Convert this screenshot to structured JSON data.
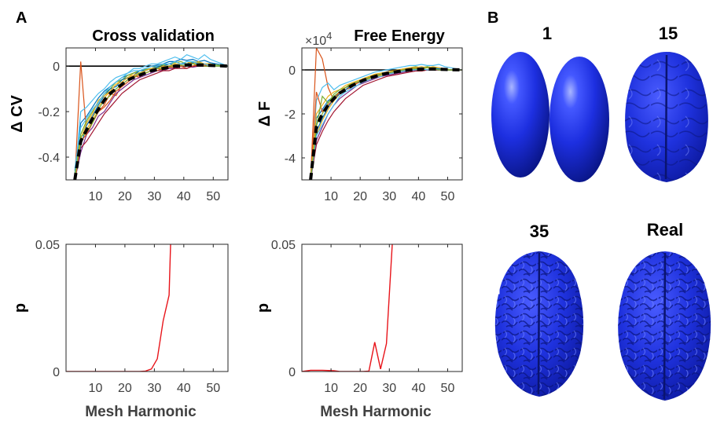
{
  "panel_labels": {
    "a": "A",
    "b": "B"
  },
  "colors": {
    "series": [
      "#0072BD",
      "#D95319",
      "#EDB120",
      "#7E2F8E",
      "#77AC30",
      "#4DBEEE",
      "#A2142F",
      "#0072BD",
      "#D95319",
      "#EDB120",
      "#4DBEEE",
      "#77AC30"
    ],
    "mean": "#000000",
    "p_line": "#e8141a",
    "brain": "#1d32e0",
    "zero_line": "#000000"
  },
  "brains": [
    {
      "label": "1",
      "kind": "ellipsoids"
    },
    {
      "label": "15",
      "kind": "smooth-brain"
    },
    {
      "label": "35",
      "kind": "detailed-brain"
    },
    {
      "label": "Real",
      "kind": "detailed-brain"
    }
  ],
  "chart_data": [
    {
      "type": "line",
      "title": "Cross validation",
      "xlabel": "",
      "ylabel": "Δ CV",
      "xlim": [
        0,
        55
      ],
      "ylim": [
        -0.5,
        0.08
      ],
      "xticks": [
        10,
        20,
        30,
        40,
        50
      ],
      "yticks": [
        0,
        -0.2,
        -0.4
      ],
      "ytick_labels": [
        "0",
        "-0.2",
        "-0.4"
      ],
      "zero_line": true,
      "x": [
        3,
        5,
        7,
        9,
        11,
        13,
        15,
        17,
        19,
        21,
        23,
        25,
        27,
        29,
        31,
        33,
        35,
        37,
        39,
        41,
        43,
        45,
        47,
        49,
        51,
        55
      ],
      "series": [
        {
          "values": [
            -0.46,
            -0.25,
            -0.22,
            -0.18,
            -0.14,
            -0.11,
            -0.09,
            -0.07,
            -0.05,
            -0.04,
            -0.03,
            -0.02,
            -0.01,
            0.0,
            0.005,
            0.01,
            0.02,
            0.02,
            0.03,
            0.025,
            0.03,
            0.02,
            0.025,
            0.015,
            0.01,
            0.0
          ]
        },
        {
          "values": [
            -0.5,
            0.02,
            -0.3,
            -0.25,
            -0.2,
            -0.17,
            -0.12,
            -0.13,
            -0.08,
            -0.06,
            -0.04,
            -0.05,
            -0.03,
            -0.02,
            -0.01,
            -0.02,
            -0.01,
            -0.005,
            0.0,
            -0.01,
            0.0,
            0.005,
            0.0,
            0.0,
            0.0,
            0.0
          ]
        },
        {
          "values": [
            -0.48,
            -0.34,
            -0.28,
            -0.23,
            -0.18,
            -0.14,
            -0.11,
            -0.08,
            -0.06,
            -0.05,
            -0.03,
            -0.03,
            -0.02,
            -0.01,
            -0.01,
            0.0,
            0.0,
            0.01,
            0.0,
            0.005,
            0.01,
            0.005,
            0.0,
            0.0,
            0.0,
            0.0
          ]
        },
        {
          "values": [
            -0.5,
            -0.38,
            -0.3,
            -0.27,
            -0.22,
            -0.2,
            -0.16,
            -0.12,
            -0.1,
            -0.08,
            -0.06,
            -0.05,
            -0.04,
            -0.03,
            -0.02,
            -0.02,
            -0.01,
            -0.01,
            0.0,
            0.0,
            -0.005,
            0.0,
            0.0,
            0.0,
            0.0,
            0.0
          ]
        },
        {
          "values": [
            -0.47,
            -0.3,
            -0.24,
            -0.2,
            -0.16,
            -0.12,
            -0.1,
            -0.07,
            -0.06,
            -0.04,
            -0.03,
            -0.02,
            -0.015,
            -0.01,
            0.0,
            0.005,
            0.01,
            0.015,
            0.02,
            0.01,
            0.02,
            0.015,
            0.01,
            0.01,
            0.005,
            0.0
          ]
        },
        {
          "values": [
            -0.49,
            -0.2,
            -0.18,
            -0.15,
            -0.12,
            -0.1,
            -0.07,
            -0.05,
            -0.04,
            -0.03,
            -0.01,
            -0.01,
            0.0,
            0.01,
            0.01,
            0.02,
            0.03,
            0.04,
            0.03,
            0.05,
            0.04,
            0.03,
            0.05,
            0.03,
            0.02,
            0.0
          ]
        },
        {
          "values": [
            -0.5,
            -0.36,
            -0.33,
            -0.29,
            -0.25,
            -0.21,
            -0.18,
            -0.15,
            -0.12,
            -0.1,
            -0.08,
            -0.06,
            -0.05,
            -0.04,
            -0.03,
            -0.02,
            -0.02,
            -0.01,
            -0.01,
            -0.01,
            0.0,
            0.0,
            0.0,
            0.0,
            0.0,
            0.0
          ]
        },
        {
          "values": [
            -0.48,
            -0.35,
            -0.26,
            -0.22,
            -0.17,
            -0.13,
            -0.1,
            -0.09,
            -0.06,
            -0.05,
            -0.04,
            -0.02,
            -0.02,
            -0.01,
            -0.005,
            0.0,
            0.01,
            0.005,
            0.01,
            0.01,
            0.015,
            0.01,
            0.01,
            0.005,
            0.0,
            0.0
          ]
        },
        {
          "values": [
            -0.5,
            -0.33,
            -0.3,
            -0.24,
            -0.2,
            -0.18,
            -0.15,
            -0.11,
            -0.09,
            -0.07,
            -0.05,
            -0.04,
            -0.03,
            -0.02,
            -0.02,
            -0.01,
            -0.005,
            0.0,
            0.0,
            0.005,
            0.0,
            0.01,
            0.005,
            0.0,
            0.0,
            0.0
          ]
        },
        {
          "values": [
            -0.5,
            -0.32,
            -0.25,
            -0.21,
            -0.15,
            -0.13,
            -0.11,
            -0.08,
            -0.07,
            -0.05,
            -0.04,
            -0.03,
            -0.02,
            -0.01,
            -0.01,
            0.0,
            0.0,
            0.01,
            0.01,
            0.02,
            0.01,
            0.02,
            0.01,
            0.01,
            0.0,
            0.0
          ]
        },
        {
          "values": [
            -0.45,
            -0.27,
            -0.23,
            -0.19,
            -0.16,
            -0.12,
            -0.09,
            -0.07,
            -0.05,
            -0.03,
            -0.02,
            -0.02,
            -0.01,
            0.0,
            0.0,
            0.01,
            0.01,
            0.02,
            0.01,
            0.02,
            0.02,
            0.01,
            0.01,
            0.0,
            0.0,
            0.0
          ]
        },
        {
          "values": [
            -0.49,
            -0.31,
            -0.29,
            -0.25,
            -0.19,
            -0.15,
            -0.13,
            -0.1,
            -0.08,
            -0.06,
            -0.05,
            -0.03,
            -0.03,
            -0.02,
            -0.01,
            -0.01,
            0.0,
            0.0,
            0.005,
            0.0,
            0.01,
            0.005,
            0.0,
            0.0,
            0.0,
            0.0
          ]
        }
      ],
      "mean": {
        "style": "dashed-bold",
        "values": [
          -0.5,
          -0.33,
          -0.28,
          -0.23,
          -0.19,
          -0.15,
          -0.12,
          -0.1,
          -0.08,
          -0.06,
          -0.05,
          -0.04,
          -0.03,
          -0.02,
          -0.015,
          -0.01,
          -0.005,
          0.0,
          0.0,
          0.005,
          0.005,
          0.005,
          0.005,
          0.003,
          0.002,
          0.0
        ]
      }
    },
    {
      "type": "line",
      "title": "Free Energy",
      "axis_multiplier": "×10",
      "axis_multiplier_exponent": "4",
      "xlabel": "",
      "ylabel": "Δ F",
      "xlim": [
        0,
        55
      ],
      "ylim": [
        -5,
        1
      ],
      "xticks": [
        10,
        20,
        30,
        40,
        50
      ],
      "yticks": [
        0,
        -2,
        -4
      ],
      "ytick_labels": [
        "0",
        "-2",
        "-4"
      ],
      "zero_line": true,
      "x": [
        3,
        5,
        7,
        9,
        11,
        13,
        15,
        17,
        19,
        21,
        23,
        25,
        27,
        29,
        31,
        33,
        35,
        37,
        39,
        41,
        43,
        45,
        47,
        49,
        51,
        55
      ],
      "series": [
        {
          "values": [
            -5.0,
            -2.2,
            -1.8,
            -1.4,
            -1.2,
            -1.0,
            -0.9,
            -0.7,
            -0.6,
            -0.5,
            -0.4,
            -0.3,
            -0.2,
            -0.15,
            -0.1,
            -0.05,
            0.0,
            0.05,
            0.1,
            0.1,
            0.15,
            0.1,
            0.1,
            0.05,
            0.0,
            0.0
          ]
        },
        {
          "values": [
            -5.0,
            1.0,
            0.5,
            -0.8,
            -1.4,
            -1.0,
            -0.9,
            -0.8,
            -0.6,
            -0.5,
            -0.4,
            -0.3,
            -0.3,
            -0.2,
            -0.15,
            -0.1,
            -0.05,
            0.0,
            0.0,
            -0.05,
            0.0,
            0.05,
            0.0,
            0.0,
            0.0,
            0.0
          ]
        },
        {
          "values": [
            -5.0,
            -3.0,
            -2.3,
            -1.8,
            -1.4,
            -1.1,
            -0.9,
            -0.7,
            -0.6,
            -0.5,
            -0.4,
            -0.3,
            -0.25,
            -0.2,
            -0.15,
            -0.1,
            -0.05,
            0.0,
            0.05,
            0.05,
            0.1,
            0.05,
            0.0,
            0.0,
            0.0,
            0.0
          ]
        },
        {
          "values": [
            -5.0,
            -3.2,
            -2.6,
            -2.0,
            -1.6,
            -1.3,
            -1.1,
            -0.9,
            -0.7,
            -0.6,
            -0.5,
            -0.4,
            -0.3,
            -0.25,
            -0.2,
            -0.15,
            -0.1,
            -0.05,
            0.0,
            0.0,
            0.0,
            0.0,
            0.0,
            0.0,
            0.0,
            0.0
          ]
        },
        {
          "values": [
            -5.0,
            -2.5,
            -2.0,
            -1.5,
            -1.2,
            -1.0,
            -0.8,
            -0.6,
            -0.5,
            -0.4,
            -0.3,
            -0.2,
            -0.15,
            -0.1,
            -0.05,
            0.0,
            0.05,
            0.1,
            0.15,
            0.1,
            0.15,
            0.1,
            0.05,
            0.05,
            0.0,
            0.0
          ]
        },
        {
          "values": [
            -5.0,
            -1.4,
            -0.8,
            -0.6,
            -0.9,
            -0.7,
            -0.6,
            -0.5,
            -0.4,
            -0.3,
            -0.2,
            -0.1,
            -0.05,
            0.0,
            0.05,
            0.1,
            0.15,
            0.2,
            0.2,
            0.25,
            0.2,
            0.2,
            0.25,
            0.15,
            0.1,
            0.0
          ]
        },
        {
          "values": [
            -5.0,
            -3.4,
            -2.8,
            -2.3,
            -1.9,
            -1.6,
            -1.3,
            -1.1,
            -0.9,
            -0.7,
            -0.6,
            -0.5,
            -0.4,
            -0.3,
            -0.25,
            -0.2,
            -0.15,
            -0.1,
            -0.05,
            -0.05,
            0.0,
            0.0,
            0.0,
            0.0,
            0.0,
            0.0
          ]
        },
        {
          "values": [
            -5.0,
            -2.8,
            -2.2,
            -1.7,
            -1.3,
            -1.1,
            -0.9,
            -0.7,
            -0.6,
            -0.5,
            -0.35,
            -0.3,
            -0.2,
            -0.15,
            -0.1,
            -0.05,
            0.0,
            0.05,
            0.05,
            0.1,
            0.1,
            0.05,
            0.05,
            0.0,
            0.0,
            0.0
          ]
        },
        {
          "values": [
            -5.0,
            -1.0,
            -1.9,
            -1.6,
            -1.3,
            -1.0,
            -0.8,
            -0.7,
            -0.6,
            -0.4,
            -0.35,
            -0.25,
            -0.2,
            -0.15,
            -0.1,
            -0.05,
            0.0,
            0.05,
            0.1,
            0.05,
            0.1,
            0.05,
            0.0,
            0.0,
            0.0,
            0.0
          ]
        },
        {
          "values": [
            -5.0,
            -2.0,
            -1.6,
            -1.2,
            -1.0,
            -0.9,
            -0.7,
            -0.6,
            -0.5,
            -0.4,
            -0.3,
            -0.2,
            -0.15,
            -0.1,
            -0.05,
            0.0,
            0.05,
            0.1,
            0.1,
            0.15,
            0.1,
            0.15,
            0.1,
            0.05,
            0.0,
            0.0
          ]
        },
        {
          "values": [
            -5.0,
            -3.0,
            -2.5,
            -2.0,
            -1.6,
            -1.2,
            -1.0,
            -0.85,
            -0.7,
            -0.55,
            -0.45,
            -0.35,
            -0.3,
            -0.2,
            -0.15,
            -0.1,
            -0.05,
            0.0,
            0.0,
            0.05,
            0.0,
            0.05,
            0.0,
            0.0,
            0.0,
            0.0
          ]
        },
        {
          "values": [
            -5.0,
            -2.6,
            -1.2,
            -1.5,
            -1.1,
            -0.9,
            -0.8,
            -0.65,
            -0.55,
            -0.45,
            -0.35,
            -0.25,
            -0.2,
            -0.15,
            -0.1,
            -0.05,
            0.0,
            0.05,
            0.05,
            0.05,
            0.1,
            0.05,
            0.0,
            0.0,
            0.0,
            0.0
          ]
        }
      ],
      "mean": {
        "style": "dashed-bold",
        "values": [
          -5.0,
          -2.6,
          -2.0,
          -1.6,
          -1.3,
          -1.05,
          -0.9,
          -0.72,
          -0.6,
          -0.48,
          -0.38,
          -0.3,
          -0.22,
          -0.16,
          -0.11,
          -0.07,
          -0.03,
          0.0,
          0.02,
          0.03,
          0.04,
          0.04,
          0.03,
          0.02,
          0.01,
          0.0
        ]
      }
    },
    {
      "type": "line",
      "title": "",
      "xlabel": "Mesh Harmonic",
      "ylabel": "p",
      "xlim": [
        0,
        55
      ],
      "ylim": [
        0,
        0.05
      ],
      "xticks": [
        10,
        20,
        30,
        40,
        50
      ],
      "yticks": [
        0,
        0.05
      ],
      "ytick_labels": [
        "0",
        "0.05"
      ],
      "x": [
        0,
        5,
        10,
        15,
        20,
        25,
        27,
        29,
        31,
        33,
        35,
        35.5
      ],
      "series": [
        {
          "values": [
            0.0,
            0.0,
            0.0,
            0.0,
            0.0,
            0.0,
            0.0002,
            0.001,
            0.005,
            0.02,
            0.03,
            0.05
          ]
        }
      ]
    },
    {
      "type": "line",
      "title": "",
      "xlabel": "Mesh Harmonic",
      "ylabel": "p",
      "xlim": [
        0,
        55
      ],
      "ylim": [
        0,
        0.05
      ],
      "xticks": [
        10,
        20,
        30,
        40,
        50
      ],
      "yticks": [
        0,
        0.05
      ],
      "ytick_labels": [
        "0",
        "0.05"
      ],
      "x": [
        0,
        3,
        7,
        11,
        13,
        17,
        21,
        23,
        25,
        27,
        29,
        31
      ],
      "series": [
        {
          "values": [
            0.0,
            0.0005,
            0.0005,
            0.0003,
            0.0,
            0.0,
            0.0,
            0.0002,
            0.0115,
            0.001,
            0.011,
            0.05
          ]
        }
      ]
    }
  ]
}
